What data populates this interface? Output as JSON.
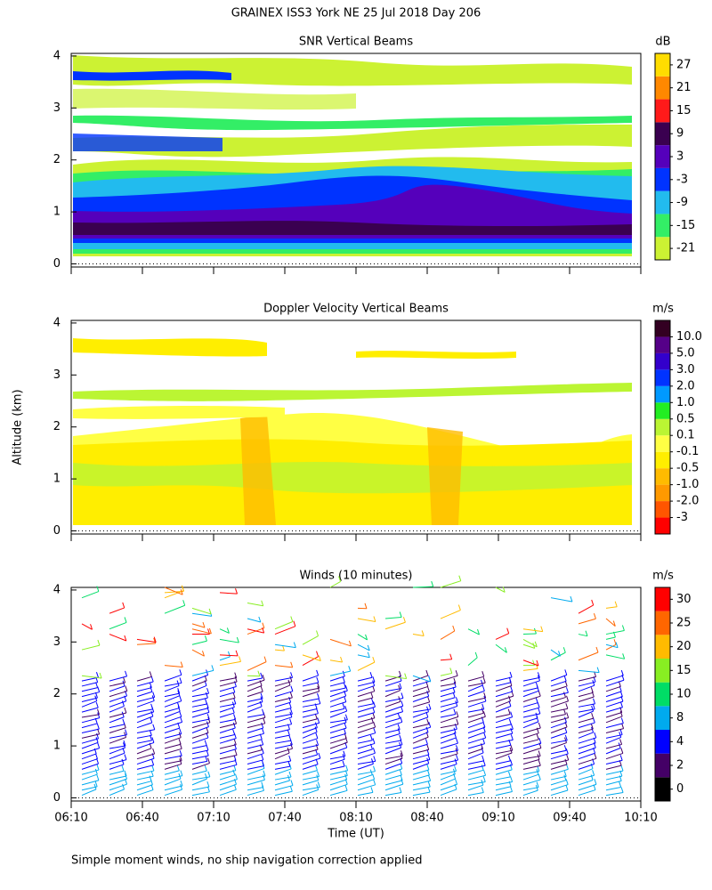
{
  "title": "GRAINEX ISS3 York NE  25 Jul 2018 Day 206",
  "y_axis_label": "Altitude (km)",
  "x_axis_label": "Time (UT)",
  "footnote": "Simple moment winds, no ship navigation correction applied",
  "xticks": [
    "06:10",
    "06:40",
    "07:10",
    "07:40",
    "08:10",
    "08:40",
    "09:10",
    "09:40",
    "10:10"
  ],
  "ylim": [
    -0.06,
    4.05
  ],
  "yticks": [
    0,
    1,
    2,
    3,
    4
  ],
  "panels": [
    {
      "title": "SNR Vertical Beams",
      "unit": "dB",
      "colorbar": {
        "ticks": [
          -21,
          -15,
          -9,
          -3,
          3,
          9,
          15,
          21,
          27
        ],
        "colors": [
          "#ccf233",
          "#33ee66",
          "#22bbee",
          "#0033ff",
          "#5500bb",
          "#3a0050",
          "#ff1a1a",
          "#ff8800",
          "#ffdd00"
        ]
      }
    },
    {
      "title": "Doppler Velocity Vertical Beams",
      "unit": "m/s",
      "colorbar": {
        "ticks": [
          -3,
          {
            "value": -2,
            "label": "-2.0"
          },
          {
            "value": -1,
            "label": "-1.0"
          },
          -0.5,
          -0.1,
          0.1,
          0.5,
          {
            "value": 1,
            "label": "1.0"
          },
          {
            "value": 2,
            "label": "2.0"
          },
          {
            "value": 3,
            "label": "3.0"
          },
          {
            "value": 5,
            "label": "5.0"
          },
          {
            "value": 10,
            "label": "10.0"
          }
        ],
        "colors": [
          "#ff0000",
          "#ff5500",
          "#ff9900",
          "#ffbb00",
          "#ffee00",
          "#ffff44",
          "#bbf533",
          "#22ee22",
          "#0099ff",
          "#0033ff",
          "#3300cc",
          "#550088",
          "#330022"
        ]
      }
    },
    {
      "title": "Winds (10 minutes)",
      "unit": "m/s",
      "colorbar": {
        "ticks": [
          0,
          2,
          4,
          8,
          10,
          15,
          20,
          25,
          30
        ],
        "colors": [
          "#000000",
          "#440066",
          "#0000ff",
          "#00aaee",
          "#00dd66",
          "#88ee22",
          "#ffbb00",
          "#ff6600",
          "#ff0000"
        ]
      }
    }
  ]
}
